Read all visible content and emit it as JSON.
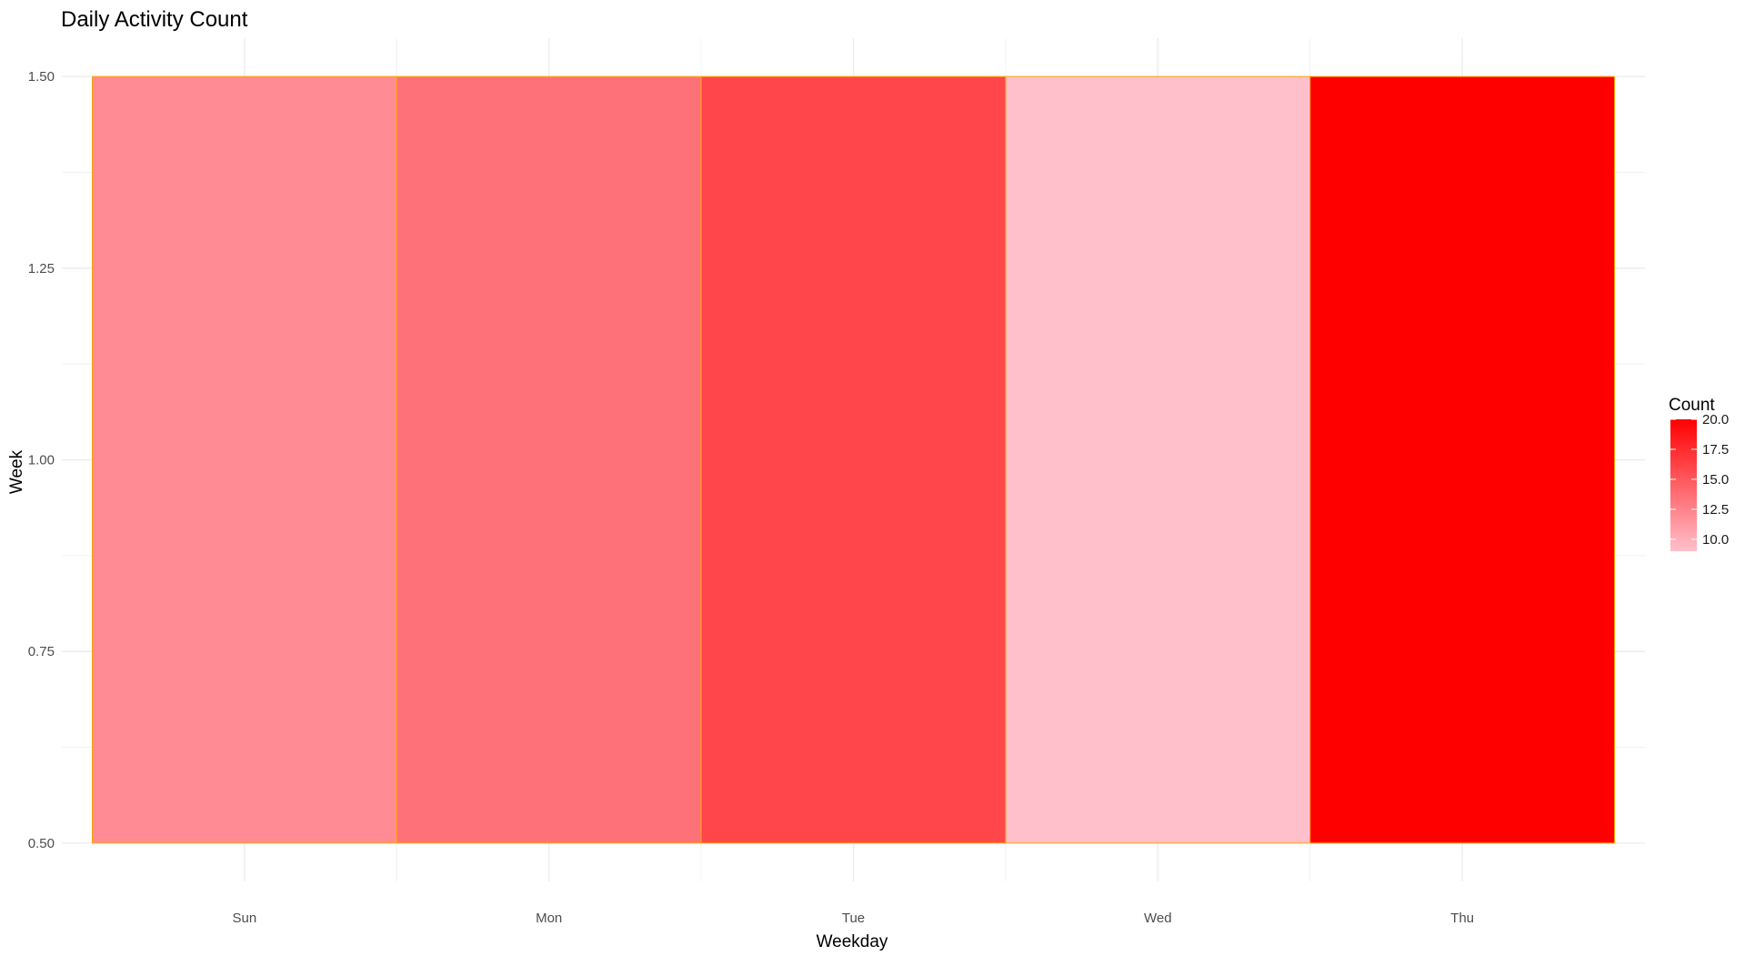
{
  "chart_data": {
    "type": "heatmap",
    "title": "Daily Activity Count",
    "xlabel": "Weekday",
    "ylabel": "Week",
    "categories": [
      "Sun",
      "Mon",
      "Tue",
      "Wed",
      "Thu"
    ],
    "y_values": [
      1,
      1,
      1,
      1,
      1
    ],
    "values": [
      12,
      13.5,
      16,
      9,
      20
    ],
    "ylim": [
      0.5,
      1.5
    ],
    "yticks": [
      "0.50",
      "0.75",
      "1.00",
      "1.25",
      "1.50"
    ],
    "ytick_values": [
      0.5,
      0.75,
      1.0,
      1.25,
      1.5
    ],
    "grid": true,
    "tile_border_color": "#ffa500",
    "color_scale": {
      "low": "#ffc0cb",
      "high": "#ff0000",
      "min": 9,
      "max": 20
    },
    "legend": {
      "title": "Count",
      "position": "right",
      "ticks": [
        "20.0",
        "17.5",
        "15.0",
        "12.5",
        "10.0"
      ],
      "tick_values": [
        20,
        17.5,
        15,
        12.5,
        10
      ]
    }
  }
}
